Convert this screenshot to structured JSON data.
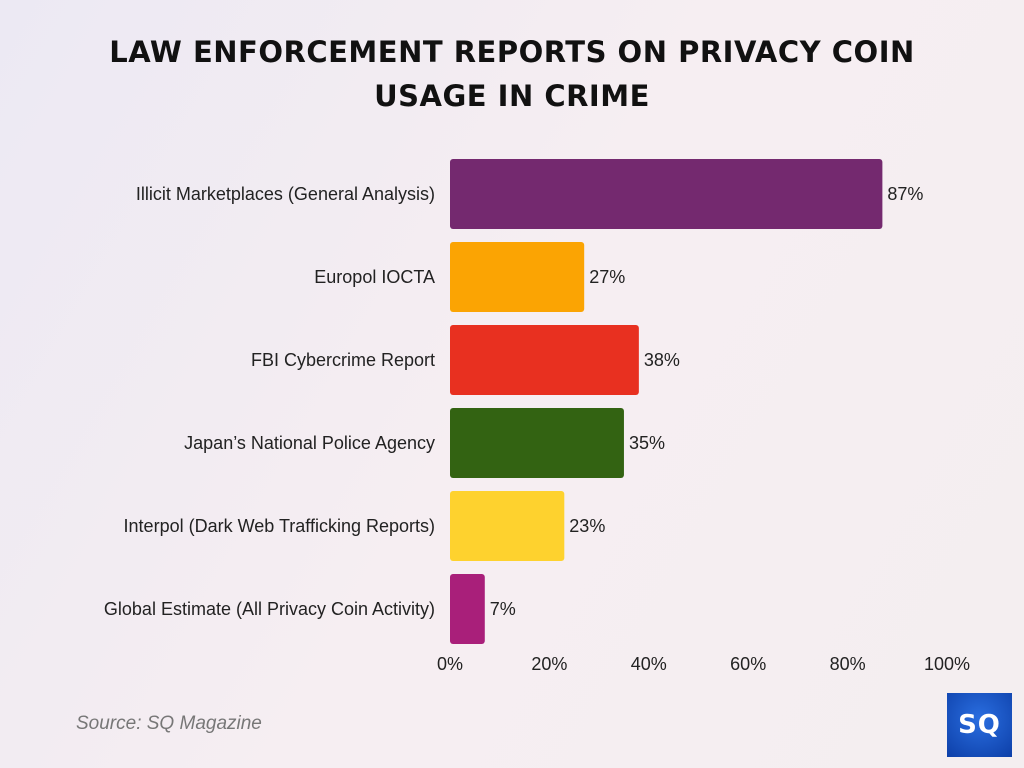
{
  "chart_data": {
    "type": "bar",
    "orientation": "horizontal",
    "title": "LAW ENFORCEMENT REPORTS ON PRIVACY COIN USAGE IN CRIME",
    "title_lines": [
      "LAW ENFORCEMENT REPORTS ON PRIVACY COIN",
      "USAGE IN CRIME"
    ],
    "categories": [
      "Illicit Marketplaces (General Analysis)",
      "Europol IOCTA",
      "FBI Cybercrime Report",
      "Japan’s National Police Agency",
      "Interpol (Dark Web Trafficking Reports)",
      "Global Estimate (All Privacy Coin Activity)"
    ],
    "values": [
      87,
      27,
      38,
      35,
      23,
      7
    ],
    "data_labels": [
      "87%",
      "27%",
      "38%",
      "35%",
      "23%",
      "7%"
    ],
    "colors": [
      "#74296f",
      "#fba403",
      "#e83020",
      "#336312",
      "#fed22e",
      "#a91f7a"
    ],
    "xlim": [
      0,
      100
    ],
    "xticks": [
      "0%",
      "20%",
      "40%",
      "60%",
      "80%",
      "100%"
    ],
    "xlabel": "",
    "ylabel": "",
    "grid": false
  },
  "source": "Source: SQ Magazine",
  "logo": "SQ"
}
